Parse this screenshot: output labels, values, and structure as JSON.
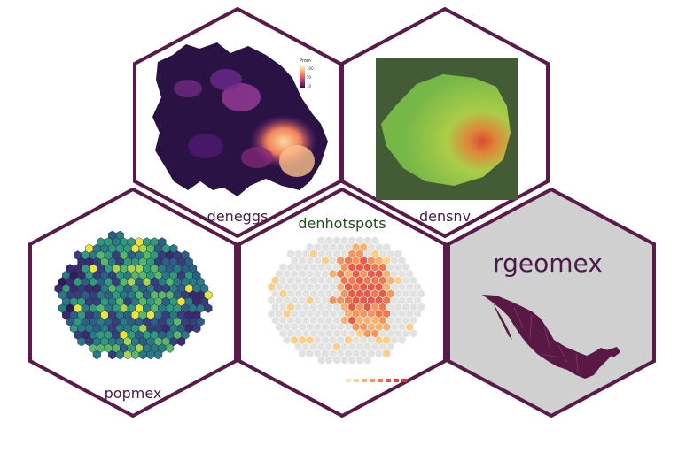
{
  "tiles": {
    "deneggs": {
      "label": "deneggs",
      "legend_title": "Prom",
      "legend_ticks": [
        "100",
        "50",
        "10"
      ]
    },
    "densnv": {
      "label": "densnv"
    },
    "denhotspots": {
      "label": "denhotspots"
    },
    "popmex": {
      "label": "popmex"
    },
    "rgeomex": {
      "title": "rgeomex"
    }
  },
  "colors": {
    "hex_border": "#5a1a4a",
    "label_purple": "#4a1a4a",
    "label_green": "#1f4d1f",
    "rgeomex_bg": "#d0d0d0",
    "map_fill": "#5a1845"
  }
}
